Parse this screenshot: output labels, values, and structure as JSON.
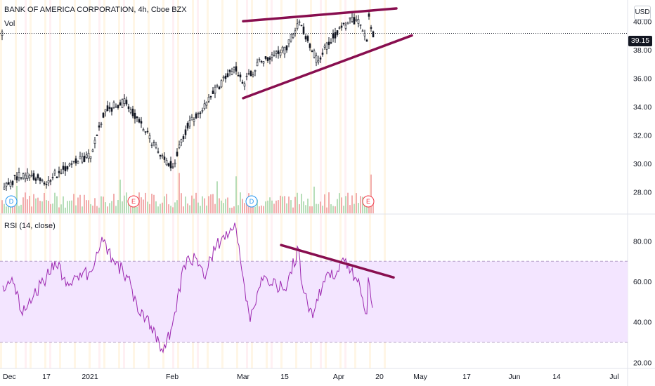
{
  "header": {
    "symbol_line": "BANK OF AMERICA CORPORATION, 4h, Cboe BZX",
    "volume_label": "Vol",
    "currency": "USD",
    "rsi_label": "RSI (14, close)"
  },
  "last_price": "39.15",
  "colors": {
    "candle": "#131722",
    "trendline": "#880e4f",
    "rsi_line": "#9c27b0",
    "rsi_band": "#f3e5ff",
    "vol_up": "#a5d6a7",
    "vol_down": "#ef9a9a"
  },
  "chart_data": [
    {
      "type": "candlestick",
      "title": "BANK OF AMERICA CORPORATION, 4h, Cboe BZX",
      "ylim": [
        27,
        41
      ],
      "y_ticks": [
        "28.00",
        "30.00",
        "32.00",
        "34.00",
        "36.00",
        "38.00",
        "40.00"
      ],
      "x_ticks": [
        "Dec",
        "17",
        "2021",
        "Feb",
        "Mar",
        "15",
        "Apr",
        "20",
        "May",
        "17",
        "Jun",
        "14",
        "Jul"
      ],
      "price_path": [
        {
          "x": "Dec",
          "close": 28.3
        },
        {
          "x": "Dec 10",
          "close": 29.3
        },
        {
          "x": "17",
          "close": 28.8
        },
        {
          "x": "Dec 24",
          "close": 29.9
        },
        {
          "x": "2021",
          "close": 30.5
        },
        {
          "x": "Jan 8",
          "close": 33.8
        },
        {
          "x": "Jan 14",
          "close": 34.3
        },
        {
          "x": "Jan 20",
          "close": 33.0
        },
        {
          "x": "Jan 27",
          "close": 30.5
        },
        {
          "x": "Feb",
          "close": 29.8
        },
        {
          "x": "Feb 8",
          "close": 32.5
        },
        {
          "x": "Feb 17",
          "close": 34.8
        },
        {
          "x": "Feb 24",
          "close": 36.8
        },
        {
          "x": "Mar",
          "close": 35.6
        },
        {
          "x": "Mar 8",
          "close": 37.3
        },
        {
          "x": "15",
          "close": 38.0
        },
        {
          "x": "Mar 18",
          "close": 40.0
        },
        {
          "x": "Mar 25",
          "close": 37.2
        },
        {
          "x": "Apr",
          "close": 39.5
        },
        {
          "x": "Apr 8",
          "close": 40.1
        },
        {
          "x": "Apr 12",
          "close": 39.8
        },
        {
          "x": "Apr 14",
          "close": 38.5
        },
        {
          "x": "Apr 15",
          "close": 40.3
        },
        {
          "x": "Apr 16",
          "close": 39.15
        }
      ],
      "annotations": [
        {
          "type": "trendline",
          "label": "upper",
          "from": {
            "x": "Mar",
            "y": 40.0
          },
          "to": {
            "x": "20",
            "y": 40.9
          }
        },
        {
          "type": "trendline",
          "label": "lower",
          "from": {
            "x": "Mar",
            "y": 34.6
          },
          "to": {
            "x": "May",
            "y": 39.0
          }
        }
      ],
      "events": [
        {
          "kind": "D",
          "x": "Dec"
        },
        {
          "kind": "E",
          "x": "Jan 19"
        },
        {
          "kind": "D",
          "x": "Mar"
        },
        {
          "kind": "E",
          "x": "Apr 15"
        }
      ],
      "last_value": 39.15
    },
    {
      "type": "line",
      "title": "RSI (14, close)",
      "ylim": [
        17,
        93
      ],
      "y_ticks": [
        "20.00",
        "40.00",
        "60.00",
        "80.00"
      ],
      "bands": [
        30,
        70
      ],
      "series": [
        {
          "points": [
            {
              "x": "Dec",
              "y": 58
            },
            {
              "x": "Dec 6",
              "y": 62
            },
            {
              "x": "Dec 10",
              "y": 45
            },
            {
              "x": "17",
              "y": 62
            },
            {
              "x": "Dec 20",
              "y": 70
            },
            {
              "x": "Dec 24",
              "y": 58
            },
            {
              "x": "2021",
              "y": 65
            },
            {
              "x": "Jan 7",
              "y": 82
            },
            {
              "x": "Jan 12",
              "y": 70
            },
            {
              "x": "Jan 16",
              "y": 62
            },
            {
              "x": "Jan 20",
              "y": 45
            },
            {
              "x": "Jan 24",
              "y": 38
            },
            {
              "x": "Jan 28",
              "y": 25
            },
            {
              "x": "Feb",
              "y": 38
            },
            {
              "x": "Feb 5",
              "y": 68
            },
            {
              "x": "Feb 10",
              "y": 72
            },
            {
              "x": "Feb 14",
              "y": 62
            },
            {
              "x": "Feb 18",
              "y": 78
            },
            {
              "x": "Feb 24",
              "y": 89
            },
            {
              "x": "Mar",
              "y": 62
            },
            {
              "x": "Mar 4",
              "y": 40
            },
            {
              "x": "Mar 8",
              "y": 62
            },
            {
              "x": "15",
              "y": 56
            },
            {
              "x": "Mar 18",
              "y": 76
            },
            {
              "x": "Mar 22",
              "y": 58
            },
            {
              "x": "Mar 26",
              "y": 42
            },
            {
              "x": "Mar 30",
              "y": 60
            },
            {
              "x": "Apr",
              "y": 65
            },
            {
              "x": "Apr 6",
              "y": 70
            },
            {
              "x": "Apr 9",
              "y": 62
            },
            {
              "x": "Apr 12",
              "y": 58
            },
            {
              "x": "Apr 14",
              "y": 44
            },
            {
              "x": "Apr 15",
              "y": 62
            },
            {
              "x": "Apr 16",
              "y": 47
            }
          ]
        }
      ],
      "annotations": [
        {
          "type": "trendline",
          "from": {
            "x": "15",
            "y": 78
          },
          "to": {
            "x": "20",
            "y": 62
          }
        }
      ]
    }
  ]
}
